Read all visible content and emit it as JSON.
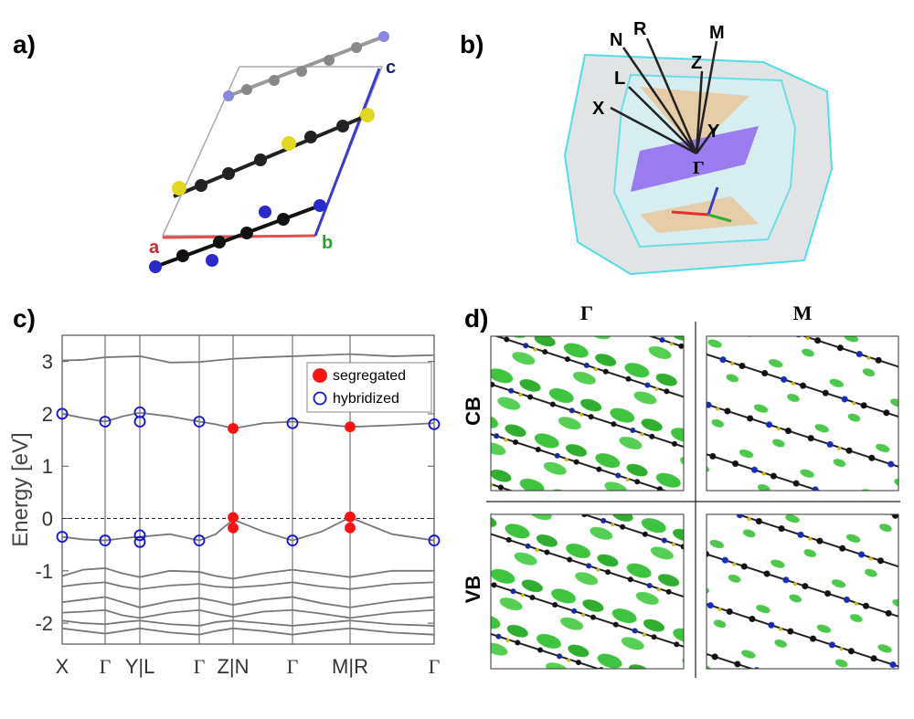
{
  "panels": {
    "a": {
      "label": "a)",
      "axes": [
        "a",
        "b",
        "c"
      ]
    },
    "b": {
      "label": "b)",
      "points": [
        "N",
        "R",
        "M",
        "Z",
        "L",
        "X",
        "Y",
        "Γ"
      ]
    },
    "d": {
      "label": "d)",
      "columns": [
        "Γ",
        "M"
      ],
      "rows": [
        "CB",
        "VB"
      ]
    }
  },
  "chart_data": {
    "label": "c)",
    "type": "line",
    "ylabel": "Energy [eV]",
    "xlim": [
      0,
      407
    ],
    "ylim": [
      -2.4,
      3.5
    ],
    "xticks": [
      {
        "value": 0,
        "label": "X"
      },
      {
        "value": 47,
        "label": "Γ"
      },
      {
        "value": 85,
        "label": "Y|L"
      },
      {
        "value": 150,
        "label": "Γ"
      },
      {
        "value": 187,
        "label": "Z|N"
      },
      {
        "value": 252,
        "label": "Γ"
      },
      {
        "value": 315,
        "label": "M|R"
      },
      {
        "value": 407,
        "label": "Γ"
      }
    ],
    "yticks": [
      -2,
      -1,
      0,
      1,
      2,
      3
    ],
    "hline": 0,
    "x": [
      0,
      23,
      47,
      66,
      85,
      118,
      150,
      168,
      187,
      220,
      252,
      284,
      315,
      361,
      407
    ],
    "bands": [
      {
        "color": "#777777",
        "values": [
          3.02,
          3.03,
          3.08,
          3.09,
          3.1,
          2.98,
          2.99,
          3.02,
          3.05,
          3.08,
          3.1,
          3.12,
          3.14,
          3.1,
          3.12
        ]
      },
      {
        "color": "#777777",
        "values": [
          2.0,
          1.92,
          1.85,
          1.95,
          2.02,
          1.95,
          1.85,
          1.8,
          1.72,
          1.82,
          1.85,
          1.8,
          1.75,
          1.78,
          1.82
        ]
      },
      {
        "color": "#777777",
        "values": [
          -0.35,
          -0.4,
          -0.42,
          -0.38,
          -0.35,
          -0.3,
          -0.42,
          -0.3,
          -0.02,
          -0.25,
          -0.42,
          -0.25,
          0.02,
          -0.3,
          -0.42
        ]
      },
      {
        "color": "#777777",
        "values": [
          -1.1,
          -0.98,
          -0.95,
          -1.05,
          -1.12,
          -1.0,
          -1.02,
          -1.1,
          -1.15,
          -1.05,
          -0.98,
          -1.05,
          -1.12,
          -1.0,
          -1.0
        ]
      },
      {
        "color": "#777777",
        "values": [
          -1.3,
          -1.25,
          -1.22,
          -1.3,
          -1.35,
          -1.28,
          -1.25,
          -1.3,
          -1.32,
          -1.28,
          -1.22,
          -1.3,
          -1.35,
          -1.25,
          -1.22
        ]
      },
      {
        "color": "#777777",
        "values": [
          -1.6,
          -1.55,
          -1.5,
          -1.6,
          -1.7,
          -1.58,
          -1.52,
          -1.58,
          -1.65,
          -1.55,
          -1.5,
          -1.62,
          -1.7,
          -1.58,
          -1.5
        ]
      },
      {
        "color": "#777777",
        "values": [
          -1.8,
          -1.78,
          -1.75,
          -1.85,
          -1.9,
          -1.8,
          -1.75,
          -1.82,
          -1.88,
          -1.78,
          -1.75,
          -1.82,
          -1.9,
          -1.8,
          -1.75
        ]
      },
      {
        "color": "#777777",
        "values": [
          -1.95,
          -2.0,
          -2.02,
          -1.98,
          -1.95,
          -2.02,
          -2.05,
          -1.98,
          -1.95,
          -2.0,
          -2.05,
          -2.0,
          -1.95,
          -2.02,
          -2.05
        ]
      },
      {
        "color": "#777777",
        "values": [
          -2.1,
          -2.15,
          -2.2,
          -2.15,
          -2.1,
          -2.18,
          -2.22,
          -2.15,
          -2.1,
          -2.15,
          -2.22,
          -2.15,
          -2.1,
          -2.18,
          -2.22
        ]
      }
    ],
    "series": [
      {
        "name": "segregated",
        "color": "#ff1111",
        "filled": true,
        "x": [
          187,
          187,
          187,
          315,
          315,
          315
        ],
        "values": [
          1.72,
          0.02,
          -0.18,
          1.75,
          0.03,
          -0.18
        ]
      },
      {
        "name": "hybridized",
        "color": "#1111dd",
        "filled": false,
        "x": [
          0,
          0,
          47,
          47,
          85,
          85,
          85,
          85,
          150,
          150,
          252,
          252,
          407,
          407
        ],
        "values": [
          2.0,
          -0.35,
          1.85,
          -0.42,
          2.03,
          1.85,
          -0.32,
          -0.45,
          1.85,
          -0.42,
          1.82,
          -0.42,
          1.8,
          -0.42
        ]
      }
    ]
  }
}
